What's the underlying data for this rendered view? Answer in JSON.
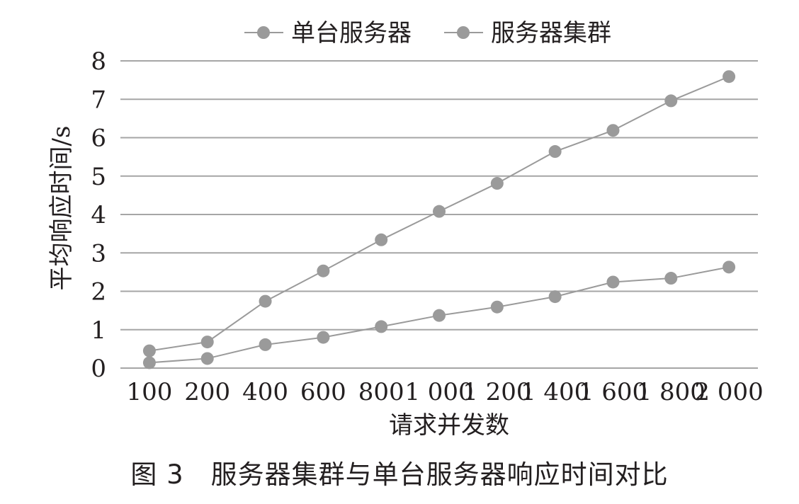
{
  "chart_data": {
    "type": "line",
    "categories": [
      "100",
      "200",
      "400",
      "600",
      "800",
      "1 000",
      "1 200",
      "1 400",
      "1 600",
      "1 800",
      "2 000"
    ],
    "series": [
      {
        "name": "单台服务器",
        "values": [
          0.45,
          0.68,
          1.74,
          2.53,
          3.34,
          4.08,
          4.81,
          5.64,
          6.19,
          6.96,
          7.59
        ],
        "color": "#9a9a9a"
      },
      {
        "name": "服务器集群",
        "values": [
          0.14,
          0.25,
          0.61,
          0.8,
          1.08,
          1.37,
          1.59,
          1.86,
          2.24,
          2.34,
          2.63
        ],
        "color": "#9a9a9a"
      }
    ],
    "ylabel": "平均响应时间/s",
    "xlabel": "请求并发数",
    "ylim": [
      0,
      8
    ],
    "yticks": [
      0,
      1,
      2,
      3,
      4,
      5,
      6,
      7,
      8
    ],
    "grid": true,
    "legend": "top-center"
  },
  "caption": "图 3　服务器集群与单台服务器响应时间对比"
}
